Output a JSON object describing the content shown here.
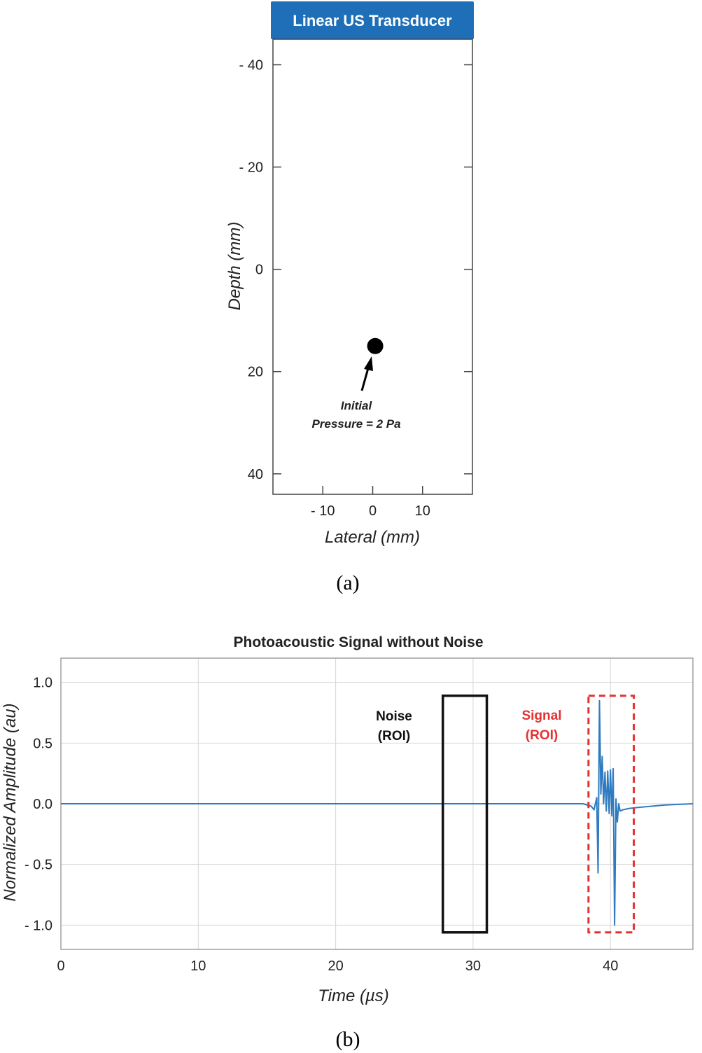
{
  "panel_a": {
    "header": "Linear US Transducer",
    "annotation_line1": "Initial",
    "annotation_line2": "Pressure = 2 Pa",
    "caption": "(a)"
  },
  "panel_b": {
    "roi_noise_line1": "Noise",
    "roi_noise_line2": "(ROI)",
    "roi_signal_line1": "Signal",
    "roi_signal_line2": "(ROI)",
    "caption": "(b)"
  },
  "colors": {
    "header_bg": "#1f6fb8",
    "signal": "#2f7bc0",
    "signal_roi": "#e53030",
    "noise_roi": "#111111"
  },
  "chart_data": [
    {
      "type": "scatter",
      "title": "",
      "xlabel": "Lateral (mm)",
      "ylabel": "Depth (mm)",
      "xlim": [
        -20,
        20
      ],
      "ylim": [
        -45,
        44
      ],
      "y_inverted": true,
      "xticks": [
        -10,
        0,
        10
      ],
      "xtick_labels": [
        "- 10",
        "0",
        "10"
      ],
      "yticks": [
        -40,
        -20,
        0,
        20,
        40
      ],
      "ytick_labels": [
        "- 40",
        "- 20",
        "0",
        "20",
        "40"
      ],
      "points": [
        {
          "x": 0.5,
          "y": 15
        }
      ],
      "grid": false
    },
    {
      "type": "line",
      "title": "Photoacoustic Signal without Noise",
      "xlabel": "Time (µs)",
      "ylabel": "Normalized Amplitude (au)",
      "xlim": [
        0,
        46
      ],
      "ylim": [
        -1.2,
        1.2
      ],
      "xticks": [
        0,
        10,
        20,
        30,
        40
      ],
      "xtick_labels": [
        "0",
        "10",
        "20",
        "30",
        "40"
      ],
      "yticks": [
        1.0,
        0.5,
        0.0,
        -0.5,
        -1.0
      ],
      "ytick_labels": [
        "1.0",
        "0.5",
        "0.0",
        "- 0.5",
        "- 1.0"
      ],
      "grid": true,
      "series": [
        {
          "x": [
            0,
            38.0,
            38.6,
            38.8,
            39.0,
            39.1,
            39.2,
            39.3,
            39.4,
            39.5,
            39.6,
            39.7,
            39.8,
            39.9,
            40.0,
            40.1,
            40.2,
            40.3,
            40.4,
            40.5,
            40.6,
            40.7,
            40.9,
            41.3,
            42.0,
            43.0,
            44.0,
            46.0
          ],
          "y": [
            0.0,
            0.0,
            -0.02,
            -0.05,
            0.05,
            -0.57,
            0.85,
            0.08,
            0.39,
            0.0,
            0.26,
            -0.06,
            0.27,
            -0.08,
            0.28,
            -0.1,
            0.29,
            -1.0,
            0.04,
            -0.15,
            0.0,
            -0.06,
            -0.05,
            -0.04,
            -0.03,
            -0.02,
            -0.01,
            0.0
          ]
        }
      ],
      "regions": [
        {
          "label": "Noise (ROI)",
          "x": [
            27.8,
            31.0
          ],
          "y": [
            -1.06,
            0.89
          ]
        },
        {
          "label": "Signal (ROI)",
          "x": [
            38.4,
            41.7
          ],
          "y": [
            -1.06,
            0.89
          ]
        }
      ]
    }
  ]
}
